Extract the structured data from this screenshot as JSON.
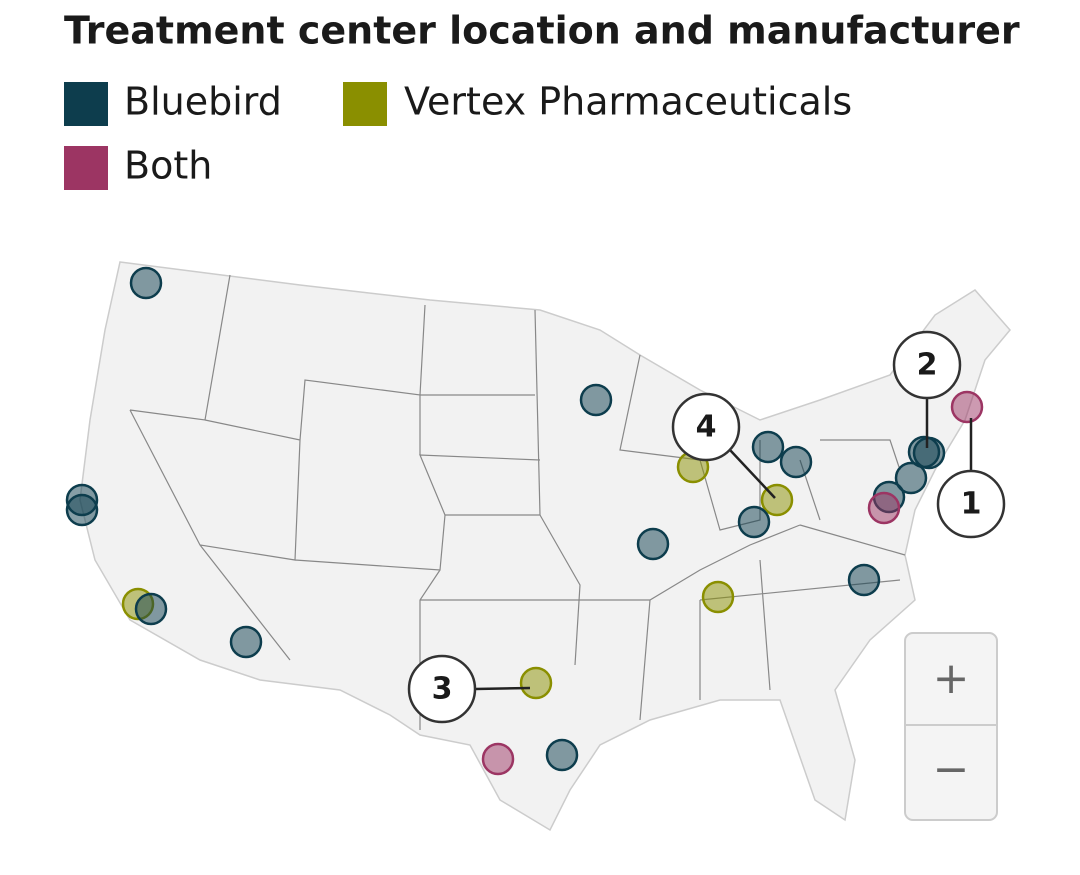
{
  "header": {
    "title": "Treatment center location and manufacturer"
  },
  "legend": [
    {
      "label": "Bluebird",
      "color": "#0d3d4d"
    },
    {
      "label": "Vertex Pharmaceuticals",
      "color": "#8a8f00"
    },
    {
      "label": "Both",
      "color": "#9c3563"
    }
  ],
  "callouts": [
    "1",
    "2",
    "3",
    "4"
  ],
  "zoom": {
    "in": "+",
    "out": "−"
  }
}
